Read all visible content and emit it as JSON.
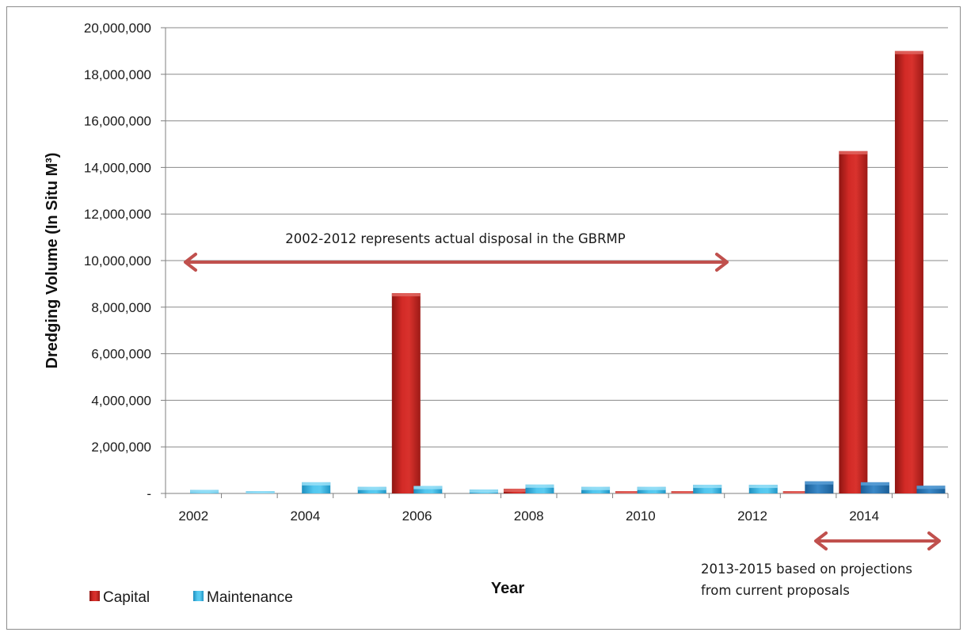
{
  "chart_data": {
    "type": "bar",
    "categories": [
      "2002",
      "2003",
      "2004",
      "2005",
      "2006",
      "2007",
      "2008",
      "2009",
      "2010",
      "2011",
      "2012",
      "2013",
      "2014",
      "2015"
    ],
    "x_tick_labels": [
      "2002",
      "",
      "2004",
      "",
      "2006",
      "",
      "2008",
      "",
      "2010",
      "",
      "2012",
      "",
      "2014",
      ""
    ],
    "series": [
      {
        "name": "Capital",
        "color": "#c0201e",
        "values": [
          0,
          0,
          0,
          0,
          8600000,
          0,
          200000,
          0,
          30000,
          30000,
          0,
          30000,
          14700000,
          19000000
        ]
      },
      {
        "name": "Maintenance",
        "color": "#33b5e5",
        "values": [
          150000,
          60000,
          480000,
          280000,
          320000,
          170000,
          380000,
          280000,
          280000,
          370000,
          370000,
          520000,
          480000,
          330000
        ]
      }
    ],
    "xlabel": "Year",
    "ylabel": "Dredging Volume (In Situ M³)",
    "ylim": [
      0,
      20000000
    ],
    "y_ticks": [
      0,
      2000000,
      4000000,
      6000000,
      8000000,
      10000000,
      12000000,
      14000000,
      16000000,
      18000000,
      20000000
    ],
    "y_tick_labels": [
      "-",
      "2,000,000",
      "4,000,000",
      "6,000,000",
      "8,000,000",
      "10,000,000",
      "12,000,000",
      "14,000,000",
      "16,000,000",
      "18,000,000",
      "20,000,000"
    ],
    "grid": true,
    "legend_position": "bottom-left",
    "annotations": [
      {
        "text": "2002-2012 represents actual disposal in the GBRMP",
        "span": [
          "2002",
          "2012"
        ]
      },
      {
        "lines": [
          "2013-2015 based on projections",
          "from current proposals"
        ],
        "span": [
          "2013",
          "2015"
        ]
      }
    ],
    "arrow_color": "#c0504d"
  }
}
